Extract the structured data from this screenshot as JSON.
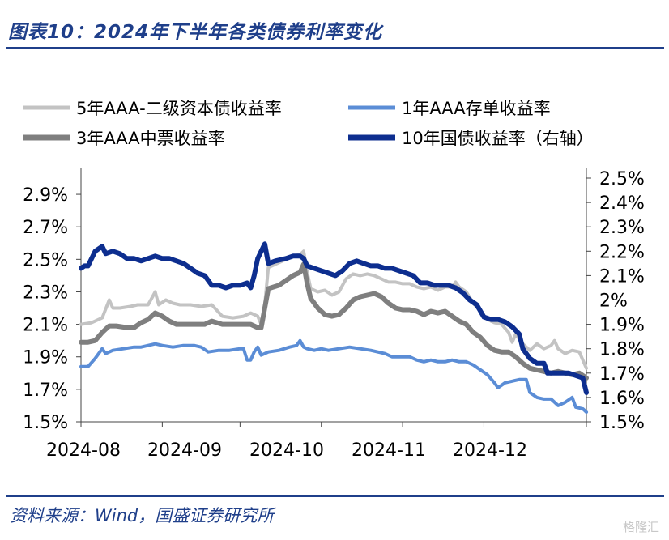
{
  "header": {
    "title": "图表10：2024年下半年各类债券利率变化"
  },
  "footer": {
    "source": "资料来源：Wind，国盛证券研究所",
    "watermark": "格隆汇"
  },
  "colors": {
    "brand": "#1f3f8a",
    "s5y": "#c3c3c3",
    "s1y": "#5b8dd6",
    "s3y": "#7f7f7f",
    "s10y": "#0d2e8f",
    "axis": "#444444"
  },
  "chart_data": {
    "type": "line",
    "x_labels": [
      "2024-08",
      "2024-09",
      "2024-10",
      "2024-11",
      "2024-12"
    ],
    "left_axis": {
      "ticks": [
        "1.5%",
        "1.7%",
        "1.9%",
        "2.1%",
        "2.3%",
        "2.5%",
        "2.7%",
        "2.9%"
      ],
      "ylim": [
        1.5,
        3.0
      ]
    },
    "right_axis": {
      "ticks": [
        "1.5%",
        "1.6%",
        "1.7%",
        "1.8%",
        "1.9%",
        "2%",
        "2.1%",
        "2.2%",
        "2.3%",
        "2.4%",
        "2.5%"
      ],
      "ylim": [
        1.5,
        2.5
      ]
    },
    "legend": [
      {
        "name": "5年AAA-二级资本债收益率",
        "key": "s5y"
      },
      {
        "name": "1年AAA存单收益率",
        "key": "s1y"
      },
      {
        "name": "3年AAA中票收益率",
        "key": "s3y"
      },
      {
        "name": "10年国债收益率（右轴）",
        "key": "s10y"
      }
    ],
    "series": [
      {
        "name": "5年AAA-二级资本债收益率",
        "key": "s5y",
        "axis": "left",
        "width": 4,
        "points": [
          [
            0,
            2.1
          ],
          [
            3,
            2.11
          ],
          [
            6,
            2.14
          ],
          [
            8,
            2.25
          ],
          [
            9,
            2.2
          ],
          [
            11,
            2.2
          ],
          [
            14,
            2.21
          ],
          [
            16,
            2.22
          ],
          [
            19,
            2.22
          ],
          [
            21,
            2.3
          ],
          [
            22,
            2.22
          ],
          [
            24,
            2.25
          ],
          [
            26,
            2.23
          ],
          [
            28,
            2.22
          ],
          [
            31,
            2.22
          ],
          [
            34,
            2.21
          ],
          [
            37,
            2.22
          ],
          [
            40,
            2.15
          ],
          [
            43,
            2.14
          ],
          [
            46,
            2.15
          ],
          [
            48,
            2.17
          ],
          [
            50,
            2.15
          ],
          [
            51,
            2.1
          ],
          [
            52,
            2.22
          ],
          [
            53,
            2.45
          ],
          [
            55,
            2.47
          ],
          [
            58,
            2.5
          ],
          [
            60,
            2.52
          ],
          [
            62,
            2.53
          ],
          [
            63,
            2.55
          ],
          [
            64,
            2.42
          ],
          [
            65,
            2.32
          ],
          [
            67,
            2.3
          ],
          [
            69,
            2.31
          ],
          [
            71,
            2.28
          ],
          [
            73,
            2.3
          ],
          [
            75,
            2.38
          ],
          [
            77,
            2.41
          ],
          [
            79,
            2.4
          ],
          [
            81,
            2.41
          ],
          [
            83,
            2.4
          ],
          [
            85,
            2.38
          ],
          [
            87,
            2.36
          ],
          [
            89,
            2.36
          ],
          [
            91,
            2.35
          ],
          [
            93,
            2.35
          ],
          [
            95,
            2.33
          ],
          [
            97,
            2.32
          ],
          [
            99,
            2.33
          ],
          [
            101,
            2.31
          ],
          [
            103,
            2.33
          ],
          [
            105,
            2.33
          ],
          [
            106,
            2.36
          ],
          [
            107,
            2.33
          ],
          [
            109,
            2.3
          ],
          [
            111,
            2.23
          ],
          [
            113,
            2.18
          ],
          [
            115,
            2.13
          ],
          [
            117,
            2.11
          ],
          [
            119,
            2.1
          ],
          [
            121,
            2.05
          ],
          [
            122,
            1.99
          ],
          [
            123,
            2.04
          ],
          [
            125,
            1.98
          ],
          [
            127,
            1.94
          ],
          [
            129,
            1.98
          ],
          [
            131,
            1.95
          ],
          [
            133,
            1.97
          ],
          [
            134,
            2.0
          ],
          [
            135,
            1.95
          ],
          [
            137,
            1.92
          ],
          [
            139,
            1.94
          ],
          [
            141,
            1.93
          ],
          [
            142,
            1.88
          ],
          [
            143,
            1.83
          ]
        ]
      },
      {
        "name": "1年AAA存单收益率",
        "key": "s1y",
        "axis": "left",
        "width": 4,
        "points": [
          [
            0,
            1.84
          ],
          [
            2,
            1.84
          ],
          [
            4,
            1.89
          ],
          [
            6,
            1.95
          ],
          [
            7,
            1.92
          ],
          [
            9,
            1.94
          ],
          [
            12,
            1.95
          ],
          [
            15,
            1.96
          ],
          [
            17,
            1.96
          ],
          [
            19,
            1.97
          ],
          [
            21,
            1.98
          ],
          [
            23,
            1.97
          ],
          [
            26,
            1.96
          ],
          [
            29,
            1.97
          ],
          [
            32,
            1.97
          ],
          [
            34,
            1.96
          ],
          [
            36,
            1.93
          ],
          [
            39,
            1.94
          ],
          [
            42,
            1.94
          ],
          [
            45,
            1.95
          ],
          [
            46,
            1.95
          ],
          [
            47,
            1.88
          ],
          [
            48,
            1.88
          ],
          [
            49,
            1.93
          ],
          [
            50,
            1.96
          ],
          [
            51,
            1.91
          ],
          [
            53,
            1.93
          ],
          [
            56,
            1.94
          ],
          [
            59,
            1.96
          ],
          [
            61,
            1.97
          ],
          [
            62,
            2.0
          ],
          [
            63,
            1.96
          ],
          [
            64,
            1.95
          ],
          [
            66,
            1.94
          ],
          [
            68,
            1.95
          ],
          [
            70,
            1.94
          ],
          [
            73,
            1.95
          ],
          [
            76,
            1.96
          ],
          [
            79,
            1.95
          ],
          [
            82,
            1.94
          ],
          [
            84,
            1.93
          ],
          [
            86,
            1.92
          ],
          [
            88,
            1.9
          ],
          [
            90,
            1.9
          ],
          [
            93,
            1.9
          ],
          [
            95,
            1.88
          ],
          [
            97,
            1.87
          ],
          [
            99,
            1.88
          ],
          [
            101,
            1.87
          ],
          [
            103,
            1.87
          ],
          [
            105,
            1.88
          ],
          [
            107,
            1.87
          ],
          [
            109,
            1.87
          ],
          [
            111,
            1.85
          ],
          [
            113,
            1.82
          ],
          [
            115,
            1.79
          ],
          [
            117,
            1.74
          ],
          [
            118,
            1.71
          ],
          [
            120,
            1.74
          ],
          [
            122,
            1.75
          ],
          [
            124,
            1.76
          ],
          [
            126,
            1.76
          ],
          [
            127,
            1.68
          ],
          [
            129,
            1.65
          ],
          [
            131,
            1.64
          ],
          [
            133,
            1.64
          ],
          [
            135,
            1.6
          ],
          [
            137,
            1.62
          ],
          [
            139,
            1.65
          ],
          [
            140,
            1.59
          ],
          [
            142,
            1.58
          ],
          [
            143,
            1.56
          ]
        ]
      },
      {
        "name": "3年AAA中票收益率",
        "key": "s3y",
        "axis": "left",
        "width": 6,
        "points": [
          [
            0,
            1.99
          ],
          [
            2,
            1.99
          ],
          [
            4,
            2.0
          ],
          [
            6,
            2.05
          ],
          [
            8,
            2.09
          ],
          [
            10,
            2.09
          ],
          [
            13,
            2.08
          ],
          [
            15,
            2.08
          ],
          [
            17,
            2.11
          ],
          [
            19,
            2.13
          ],
          [
            21,
            2.17
          ],
          [
            23,
            2.15
          ],
          [
            25,
            2.12
          ],
          [
            27,
            2.1
          ],
          [
            29,
            2.1
          ],
          [
            32,
            2.1
          ],
          [
            35,
            2.1
          ],
          [
            37,
            2.12
          ],
          [
            40,
            2.1
          ],
          [
            43,
            2.1
          ],
          [
            46,
            2.1
          ],
          [
            48,
            2.1
          ],
          [
            50,
            2.08
          ],
          [
            51,
            2.08
          ],
          [
            52,
            2.2
          ],
          [
            53,
            2.32
          ],
          [
            56,
            2.34
          ],
          [
            58,
            2.37
          ],
          [
            60,
            2.4
          ],
          [
            62,
            2.42
          ],
          [
            63,
            2.47
          ],
          [
            64,
            2.35
          ],
          [
            65,
            2.26
          ],
          [
            67,
            2.2
          ],
          [
            69,
            2.16
          ],
          [
            71,
            2.15
          ],
          [
            73,
            2.16
          ],
          [
            75,
            2.2
          ],
          [
            77,
            2.25
          ],
          [
            79,
            2.27
          ],
          [
            81,
            2.28
          ],
          [
            83,
            2.29
          ],
          [
            85,
            2.27
          ],
          [
            87,
            2.23
          ],
          [
            89,
            2.2
          ],
          [
            91,
            2.19
          ],
          [
            93,
            2.19
          ],
          [
            95,
            2.18
          ],
          [
            97,
            2.16
          ],
          [
            99,
            2.18
          ],
          [
            101,
            2.17
          ],
          [
            103,
            2.18
          ],
          [
            105,
            2.15
          ],
          [
            107,
            2.12
          ],
          [
            109,
            2.1
          ],
          [
            111,
            2.05
          ],
          [
            113,
            2.02
          ],
          [
            115,
            1.97
          ],
          [
            117,
            1.94
          ],
          [
            119,
            1.93
          ],
          [
            121,
            1.93
          ],
          [
            123,
            1.9
          ],
          [
            125,
            1.86
          ],
          [
            127,
            1.83
          ],
          [
            129,
            1.82
          ],
          [
            131,
            1.81
          ],
          [
            133,
            1.8
          ],
          [
            135,
            1.81
          ],
          [
            137,
            1.8
          ],
          [
            139,
            1.79
          ],
          [
            141,
            1.8
          ],
          [
            143,
            1.77
          ]
        ]
      },
      {
        "name": "10年国债收益率（右轴）",
        "key": "s10y",
        "axis": "right",
        "width": 6,
        "points": [
          [
            0,
            2.13
          ],
          [
            1,
            2.14
          ],
          [
            2,
            2.14
          ],
          [
            3,
            2.17
          ],
          [
            4,
            2.2
          ],
          [
            5,
            2.21
          ],
          [
            6,
            2.22
          ],
          [
            7,
            2.19
          ],
          [
            9,
            2.2
          ],
          [
            11,
            2.19
          ],
          [
            13,
            2.17
          ],
          [
            15,
            2.17
          ],
          [
            17,
            2.16
          ],
          [
            19,
            2.17
          ],
          [
            21,
            2.18
          ],
          [
            23,
            2.17
          ],
          [
            25,
            2.17
          ],
          [
            27,
            2.16
          ],
          [
            29,
            2.15
          ],
          [
            31,
            2.13
          ],
          [
            33,
            2.11
          ],
          [
            35,
            2.1
          ],
          [
            37,
            2.06
          ],
          [
            39,
            2.06
          ],
          [
            41,
            2.05
          ],
          [
            43,
            2.06
          ],
          [
            45,
            2.06
          ],
          [
            47,
            2.07
          ],
          [
            48,
            2.05
          ],
          [
            49,
            2.1
          ],
          [
            50,
            2.17
          ],
          [
            51,
            2.2
          ],
          [
            52,
            2.23
          ],
          [
            53,
            2.15
          ],
          [
            55,
            2.16
          ],
          [
            58,
            2.17
          ],
          [
            60,
            2.18
          ],
          [
            62,
            2.18
          ],
          [
            63,
            2.17
          ],
          [
            64,
            2.14
          ],
          [
            66,
            2.13
          ],
          [
            68,
            2.12
          ],
          [
            70,
            2.11
          ],
          [
            72,
            2.1
          ],
          [
            74,
            2.12
          ],
          [
            76,
            2.15
          ],
          [
            78,
            2.16
          ],
          [
            80,
            2.15
          ],
          [
            82,
            2.14
          ],
          [
            84,
            2.14
          ],
          [
            86,
            2.13
          ],
          [
            88,
            2.13
          ],
          [
            90,
            2.12
          ],
          [
            92,
            2.11
          ],
          [
            94,
            2.1
          ],
          [
            96,
            2.07
          ],
          [
            98,
            2.07
          ],
          [
            100,
            2.06
          ],
          [
            102,
            2.06
          ],
          [
            104,
            2.06
          ],
          [
            106,
            2.05
          ],
          [
            108,
            2.03
          ],
          [
            110,
            2.0
          ],
          [
            112,
            1.98
          ],
          [
            114,
            1.93
          ],
          [
            116,
            1.92
          ],
          [
            118,
            1.92
          ],
          [
            120,
            1.91
          ],
          [
            122,
            1.89
          ],
          [
            124,
            1.86
          ],
          [
            125,
            1.8
          ],
          [
            127,
            1.76
          ],
          [
            129,
            1.74
          ],
          [
            131,
            1.74
          ],
          [
            132,
            1.7
          ],
          [
            134,
            1.7
          ],
          [
            136,
            1.7
          ],
          [
            138,
            1.7
          ],
          [
            140,
            1.69
          ],
          [
            142,
            1.68
          ],
          [
            143,
            1.62
          ]
        ]
      }
    ]
  }
}
